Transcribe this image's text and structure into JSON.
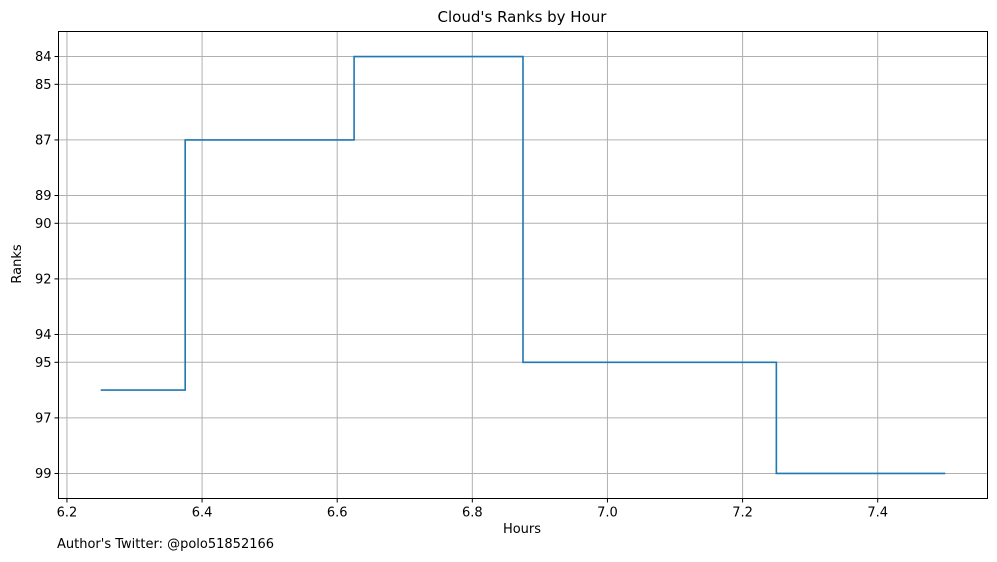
{
  "chart_data": {
    "type": "line",
    "drawstyle": "steps-mid",
    "title": "Cloud's Ranks by Hour",
    "xlabel": "Hours",
    "ylabel": "Ranks",
    "xlim": [
      6.1875,
      7.5625
    ],
    "ylim": [
      99.9,
      83.1
    ],
    "y_inverted": true,
    "grid": true,
    "line_color": "#1f77b4",
    "x_ticks": [
      6.2,
      6.4,
      6.6,
      6.8,
      7.0,
      7.2,
      7.4
    ],
    "x_tick_labels": [
      "6.2",
      "6.4",
      "6.6",
      "6.8",
      "7.0",
      "7.2",
      "7.4"
    ],
    "y_ticks": [
      84,
      85,
      87,
      89,
      90,
      92,
      94,
      95,
      97,
      99
    ],
    "y_tick_labels": [
      "84",
      "85",
      "87",
      "89",
      "90",
      "92",
      "94",
      "95",
      "97",
      "99"
    ],
    "series": [
      {
        "x": [
          6.25,
          6.5,
          6.75,
          7.0,
          7.5
        ],
        "y": [
          96,
          87,
          84,
          95,
          99
        ]
      }
    ]
  },
  "footnote": "Author's Twitter: @polo51852166"
}
